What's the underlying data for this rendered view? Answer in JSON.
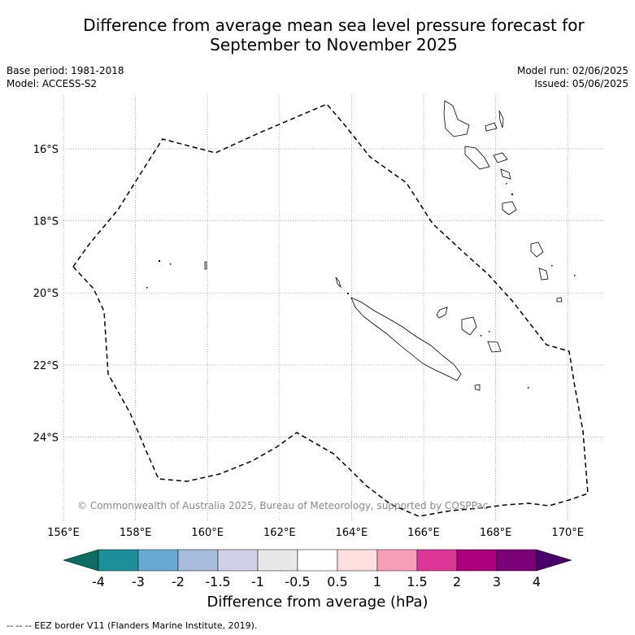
{
  "title_line1": "Difference from average mean sea level pressure forecast for",
  "title_line2": "September to November 2025",
  "base_period": "Base period: 1981-2018",
  "model": "Model: ACCESS-S2",
  "model_run": "Model run: 02/06/2025",
  "issued": "Issued: 05/06/2025",
  "copyright": "© Commonwealth of Australia 2025, Bureau of Meteorology, supported by COSPPac",
  "x_ticks": [
    "156°E",
    "158°E",
    "160°E",
    "162°E",
    "164°E",
    "166°E",
    "168°E",
    "170°E"
  ],
  "y_ticks": [
    "16°S",
    "18°S",
    "20°S",
    "22°S",
    "24°S"
  ],
  "colorbar": {
    "title": "Difference from average (hPa)",
    "ticks": [
      "-4",
      "-3",
      "-2",
      "-1.5",
      "-1",
      "-0.5",
      "0.5",
      "1",
      "1.5",
      "2",
      "3",
      "4"
    ],
    "colors": [
      "#0e6b63",
      "#1b8f9a",
      "#67abd4",
      "#a8bcdd",
      "#d0d0e6",
      "#e8e8e8",
      "#ffffff",
      "#fde0df",
      "#f79ebb",
      "#dd3497",
      "#ae017e",
      "#7a0177",
      "#49006a"
    ]
  },
  "legend_note": "--  --  -- EEZ border V11 (Flanders Marine Institute, 2019).",
  "map_style": {
    "fill": "white",
    "grid": "dotted",
    "eez_border": "dashed black"
  }
}
